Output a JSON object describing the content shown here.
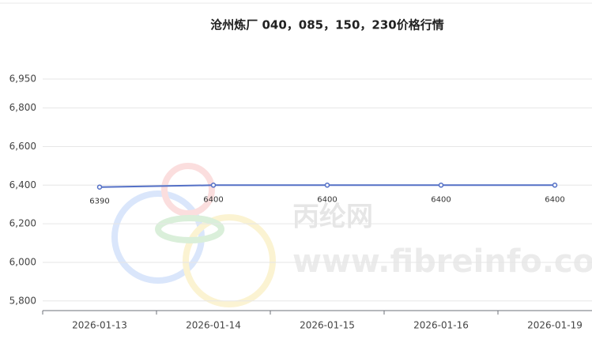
{
  "chart_data": {
    "type": "line",
    "title": "沧州炼厂 040，085，150，230价格行情",
    "watermark": [
      "丙纶网",
      "www.fibreinfo.com"
    ],
    "categories": [
      "2026-01-13",
      "2026-01-14",
      "2026-01-15",
      "2026-01-16",
      "2026-01-19"
    ],
    "series": [
      {
        "color": "#5470c6",
        "values": [
          6390,
          6400,
          6400,
          6400,
          6400
        ]
      }
    ],
    "ylim": [
      5750,
      6950
    ],
    "yticks": [
      {
        "value": 5800,
        "label": "5,800"
      },
      {
        "value": 6000,
        "label": "6,000"
      },
      {
        "value": 6200,
        "label": "6,200"
      },
      {
        "value": 6400,
        "label": "6,400"
      },
      {
        "value": 6600,
        "label": "6,600"
      },
      {
        "value": 6800,
        "label": "6,800"
      },
      {
        "value": 6950,
        "label": "6,950"
      }
    ],
    "grid": true
  }
}
